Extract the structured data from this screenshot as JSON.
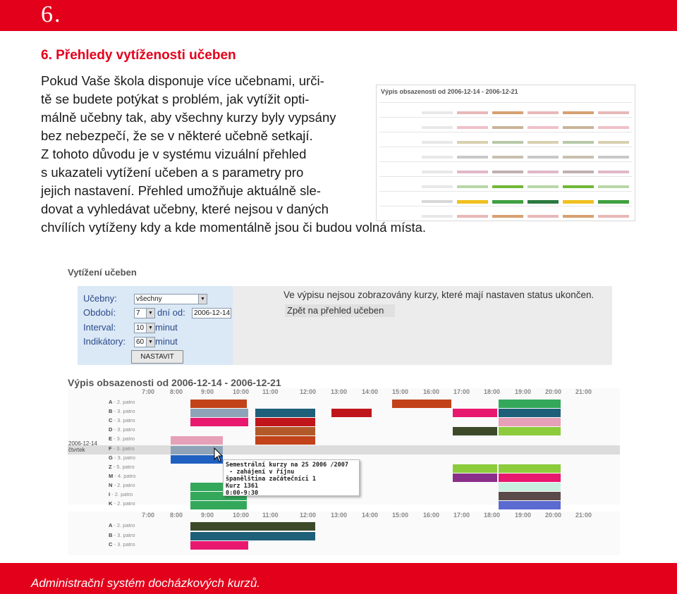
{
  "header": {
    "chapter": "6."
  },
  "section": {
    "title": "6. Přehledy vytíženosti učeben"
  },
  "intro_lines": [
    "Pokud Vaše škola disponuje více učebnami, urči-",
    "tě se budete potýkat s problém, jak vytížit opti-",
    "málně učebny tak, aby všechny kurzy byly vypsány",
    "bez nebezpečí, že se v některé učebně setkají.",
    "Z tohoto důvodu je v systému vizuální přehled",
    "s ukazateli vytížení učeben a s parametry pro",
    "jejich nastavení. Přehled umožňuje aktuálně sle-",
    "dovat a vyhledávat učebny, které nejsou v daných",
    "chvílích vytíženy kdy a kde momentálně jsou či budou volná místa."
  ],
  "thumbnail": {
    "title": "Výpis obsazenosti od 2006-12-14 - 2006-12-21"
  },
  "form": {
    "title": "Vytížení učeben",
    "ucebny_label": "Učebny:",
    "ucebny_value": "všechny",
    "obdobi_label": "Období:",
    "obdobi_value": "7",
    "dni_od_label": "dní od:",
    "dni_od_value": "2006-12-14",
    "interval_label": "Interval:",
    "interval_value": "10",
    "minut_1": "minut",
    "indikatory_label": "Indikátory:",
    "indikatory_value": "60",
    "minut_2": "minut",
    "submit_label": "NASTAVIT",
    "note": "Ve výpisu nejsou zobrazovány kurzy, které mají nastaven status ukončen.",
    "back_link": "Zpět na přehled učeben"
  },
  "schedule": {
    "title": "Výpis obsazenosti od 2006-12-14 - 2006-12-21",
    "times": [
      "7:00",
      "8:00",
      "9:00",
      "10:00",
      "11:00",
      "12:00",
      "13:00",
      "14:00",
      "15:00",
      "16:00",
      "17:00",
      "18:00",
      "19:00",
      "20:00",
      "21:00"
    ],
    "date": "2006-12-14",
    "day": "čtvrtek",
    "rooms": [
      {
        "code": "A",
        "floor": "- 2. patro"
      },
      {
        "code": "B",
        "floor": "- 3. patro"
      },
      {
        "code": "C",
        "floor": "- 3. patro"
      },
      {
        "code": "D",
        "floor": "- 3. patro"
      },
      {
        "code": "E",
        "floor": "- 3. patro"
      },
      {
        "code": "F",
        "floor": "- 3. patro"
      },
      {
        "code": "G",
        "floor": "- 3. patro"
      },
      {
        "code": "Z",
        "floor": "- 5. patro"
      },
      {
        "code": "M",
        "floor": "- 4. patro"
      },
      {
        "code": "N",
        "floor": "- 2. patro"
      },
      {
        "code": "I",
        "floor": "- 2. patro"
      },
      {
        "code": "K",
        "floor": "- 2. patro"
      }
    ],
    "rooms2": [
      {
        "code": "A",
        "floor": "- 2. patro"
      },
      {
        "code": "B",
        "floor": "- 3. patro"
      },
      {
        "code": "C",
        "floor": "- 3. patro"
      }
    ],
    "tooltip": [
      "Semestrální kurzy na 2S 2006 /2007",
      " - zahájení v říjnu",
      "španělština začátečníci 1",
      "Kurz 1361",
      "0:00-9:30"
    ],
    "colors": {
      "red": "#c0161b",
      "orange_red": "#c2421a",
      "pink": "#e8186f",
      "grey_blue": "#8fa3b8",
      "teal_dark": "#1e5f79",
      "green": "#33a85a",
      "light_green": "#8ccb3c",
      "olive": "#6e8a2a",
      "brown": "#b35a2a",
      "rose": "#e6a0b8",
      "dark_olive": "#3c4a2a",
      "purple": "#8a2f8a"
    }
  },
  "footer": {
    "text": "Administrační systém docházkových kurzů."
  }
}
